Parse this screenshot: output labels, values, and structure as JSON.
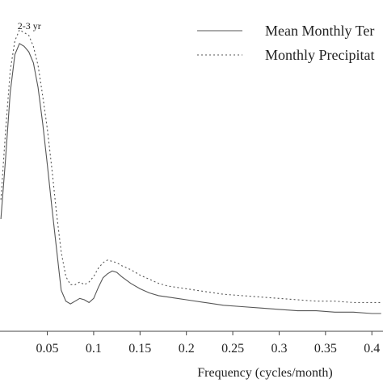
{
  "chart_data": {
    "type": "line",
    "title": "",
    "xlabel": "Frequency (cycles/month)",
    "ylabel": "",
    "xlim": [
      -0.001,
      0.412
    ],
    "ylim": [
      -0.03,
      1.12
    ],
    "xticks": [
      0.05,
      0.1,
      0.15,
      0.2,
      0.25,
      0.3,
      0.35,
      0.4
    ],
    "xtick_labels": [
      "0.05",
      "0.1",
      "0.15",
      "0.2",
      "0.25",
      "0.3",
      "0.35",
      "0.4"
    ],
    "grid": false,
    "legend": "top-right",
    "annotations": [
      {
        "text": "2-3 yr",
        "x": 0.018,
        "y": 1.09
      }
    ],
    "series": [
      {
        "name": "Mean Monthly Ter",
        "style": "solid",
        "color": "#555555",
        "x": [
          0,
          0.005,
          0.01,
          0.015,
          0.02,
          0.025,
          0.03,
          0.035,
          0.04,
          0.045,
          0.05,
          0.055,
          0.06,
          0.065,
          0.07,
          0.075,
          0.08,
          0.085,
          0.09,
          0.095,
          0.1,
          0.105,
          0.11,
          0.115,
          0.12,
          0.125,
          0.13,
          0.14,
          0.15,
          0.16,
          0.17,
          0.18,
          0.19,
          0.2,
          0.22,
          0.24,
          0.26,
          0.28,
          0.3,
          0.32,
          0.34,
          0.36,
          0.38,
          0.4,
          0.41
        ],
        "y": [
          0.38,
          0.6,
          0.84,
          0.98,
          1.02,
          1.01,
          0.99,
          0.95,
          0.86,
          0.73,
          0.58,
          0.42,
          0.27,
          0.12,
          0.08,
          0.07,
          0.08,
          0.09,
          0.085,
          0.075,
          0.09,
          0.13,
          0.165,
          0.18,
          0.19,
          0.185,
          0.17,
          0.145,
          0.125,
          0.11,
          0.1,
          0.095,
          0.09,
          0.085,
          0.075,
          0.065,
          0.06,
          0.055,
          0.05,
          0.045,
          0.045,
          0.04,
          0.04,
          0.035,
          0.035
        ]
      },
      {
        "name": "Monthly Precipitat",
        "style": "dotted",
        "color": "#555555",
        "x": [
          0,
          0.005,
          0.01,
          0.015,
          0.02,
          0.025,
          0.03,
          0.035,
          0.04,
          0.045,
          0.05,
          0.055,
          0.06,
          0.065,
          0.07,
          0.075,
          0.08,
          0.085,
          0.09,
          0.095,
          0.1,
          0.105,
          0.11,
          0.115,
          0.12,
          0.125,
          0.13,
          0.14,
          0.15,
          0.16,
          0.17,
          0.18,
          0.19,
          0.2,
          0.22,
          0.24,
          0.26,
          0.28,
          0.3,
          0.32,
          0.34,
          0.36,
          0.38,
          0.4,
          0.41
        ],
        "y": [
          0.45,
          0.7,
          0.92,
          1.03,
          1.07,
          1.06,
          1.05,
          1.01,
          0.94,
          0.83,
          0.71,
          0.56,
          0.4,
          0.26,
          0.17,
          0.14,
          0.14,
          0.15,
          0.14,
          0.15,
          0.17,
          0.2,
          0.22,
          0.23,
          0.225,
          0.22,
          0.21,
          0.195,
          0.175,
          0.16,
          0.145,
          0.135,
          0.13,
          0.125,
          0.115,
          0.105,
          0.1,
          0.095,
          0.09,
          0.085,
          0.08,
          0.08,
          0.075,
          0.075,
          0.075
        ]
      }
    ]
  }
}
